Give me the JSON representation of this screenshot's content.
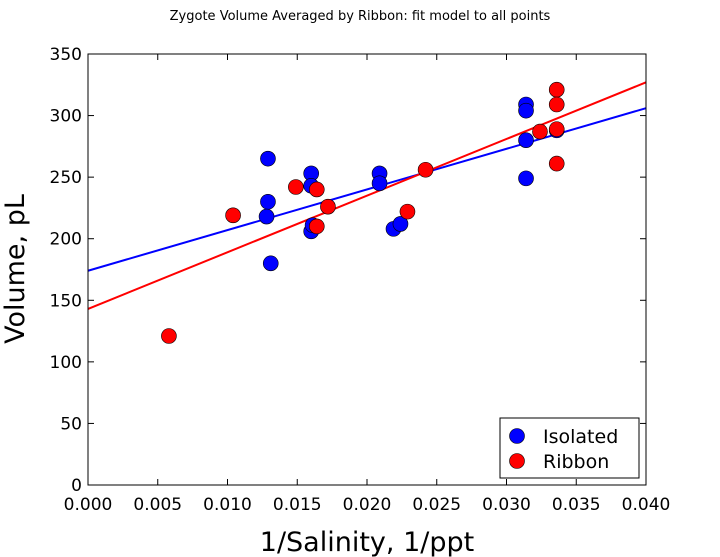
{
  "chart_data": {
    "type": "scatter",
    "title": "Zygote Volume Averaged by Ribbon: fit model to all points",
    "xlabel": "1/Salinity, 1/ppt",
    "ylabel": "Volume, pL",
    "xlim": [
      0.0,
      0.04
    ],
    "ylim": [
      0,
      350
    ],
    "xticks": [
      "0.000",
      "0.005",
      "0.010",
      "0.015",
      "0.020",
      "0.025",
      "0.030",
      "0.035",
      "0.040"
    ],
    "yticks": [
      "0",
      "50",
      "100",
      "150",
      "200",
      "250",
      "300",
      "350"
    ],
    "grid": false,
    "legend_position": "bottom-right",
    "series": [
      {
        "name": "Isolated",
        "color": "#0000ff",
        "points": [
          [
            0.0129,
            265
          ],
          [
            0.0129,
            230
          ],
          [
            0.0128,
            218
          ],
          [
            0.0131,
            180
          ],
          [
            0.016,
            253
          ],
          [
            0.016,
            243
          ],
          [
            0.016,
            206
          ],
          [
            0.0161,
            211
          ],
          [
            0.0209,
            253
          ],
          [
            0.0209,
            245
          ],
          [
            0.0219,
            208
          ],
          [
            0.0224,
            212
          ],
          [
            0.0314,
            309
          ],
          [
            0.0314,
            304
          ],
          [
            0.0314,
            280
          ],
          [
            0.0314,
            249
          ],
          [
            0.0336,
            288
          ]
        ],
        "fit": {
          "x": [
            0.0,
            0.04
          ],
          "y": [
            174,
            306
          ]
        }
      },
      {
        "name": "Ribbon",
        "color": "#ff0000",
        "points": [
          [
            0.0058,
            121
          ],
          [
            0.0104,
            219
          ],
          [
            0.0149,
            242
          ],
          [
            0.0164,
            240
          ],
          [
            0.0164,
            210
          ],
          [
            0.0172,
            226
          ],
          [
            0.0229,
            222
          ],
          [
            0.0242,
            256
          ],
          [
            0.0324,
            287
          ],
          [
            0.0336,
            321
          ],
          [
            0.0336,
            309
          ],
          [
            0.0336,
            261
          ],
          [
            0.0336,
            289
          ]
        ],
        "fit": {
          "x": [
            0.0,
            0.04
          ],
          "y": [
            143,
            327
          ]
        }
      }
    ]
  }
}
